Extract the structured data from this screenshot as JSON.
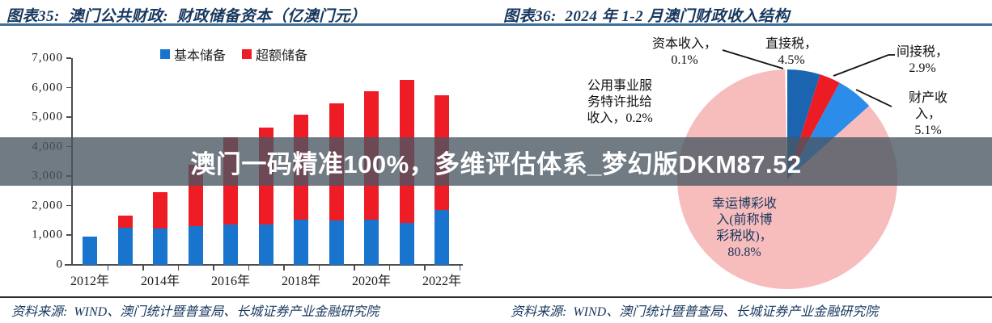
{
  "watermark_text": "澳门一码精准100%，多维评估体系_梦幻版DKM87.52",
  "left_panel": {
    "title": "图表35:  澳门公共财政:  财政储备资本（亿澳门元）",
    "source": "资料来源:  WIND、澳门统计暨普查局、长城证券产业金融研究院"
  },
  "right_panel": {
    "title": "图表36:  2024 年 1-2 月澳门财政收入结构",
    "source": "资料来源:  WIND、澳门统计暨普查局、长城证券产业金融研究院"
  },
  "chart_data": [
    {
      "type": "bar",
      "stacked": true,
      "title": "澳门公共财政: 财政储备资本（亿澳门元）",
      "categories": [
        "2012年",
        "2013年",
        "2014年",
        "2015年",
        "2016年",
        "2017年",
        "2018年",
        "2019年",
        "2020年",
        "2021年",
        "2022年"
      ],
      "xtick_labels_shown": [
        "2012年",
        "2014年",
        "2016年",
        "2018年",
        "2020年",
        "2022年"
      ],
      "series": [
        {
          "name": "基本储备",
          "color": "#1874CD",
          "values": [
            960,
            1250,
            1240,
            1300,
            1370,
            1370,
            1520,
            1510,
            1520,
            1420,
            1860
          ]
        },
        {
          "name": "超额储备",
          "color": "#EE1C25",
          "values": [
            0,
            420,
            1220,
            2100,
            2960,
            3280,
            3560,
            3960,
            4350,
            4830,
            3870
          ]
        }
      ],
      "ylim": [
        0,
        7000
      ],
      "ytick_step": 1000,
      "legend_position": "top",
      "grid": false
    },
    {
      "type": "pie",
      "title": "2024 年 1-2 月澳门财政收入结构",
      "slices": [
        {
          "label": "直接税",
          "value": 4.5,
          "color": "#1B64B0",
          "display": "直接税，\n4.5%"
        },
        {
          "label": "间接税",
          "value": 2.9,
          "color": "#EC1C24",
          "display": "间接税，\n2.9%"
        },
        {
          "label": "财产收入",
          "value": 5.1,
          "color": "#2B8CEA",
          "display": "财产收入，\n5.1%"
        },
        {
          "label": "幸运博彩收入(前称博彩税收)",
          "value": 80.8,
          "color": "#F7BCBC",
          "display": "幸运博彩收\n入(前称博\n彩税收)，\n80.8%"
        },
        {
          "label": "公用事业服务特许批给收入",
          "value": 0.2,
          "color": "#FFFFFF",
          "display": "公用事业服\n务特许批给\n收入，0.2%"
        },
        {
          "label": "资本收入",
          "value": 0.1,
          "color": "#FFFFFF",
          "display": "资本收入，\n0.1%"
        }
      ],
      "legend_position": "none"
    }
  ]
}
